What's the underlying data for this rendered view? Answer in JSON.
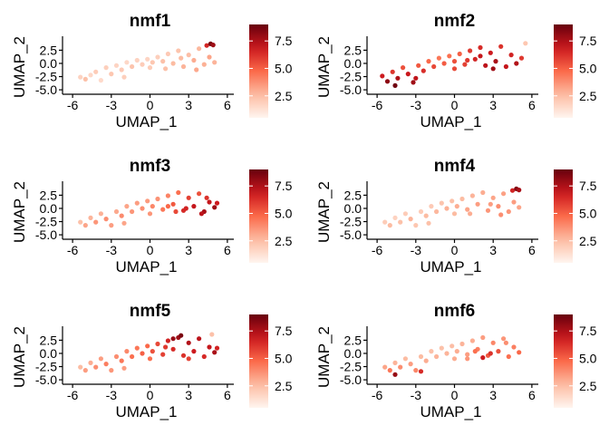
{
  "chart_data": [
    {
      "type": "scatter",
      "title": "nmf1",
      "xlabel": "UMAP_1",
      "ylabel": "UMAP_2",
      "xlim": [
        -6.5,
        6.5
      ],
      "ylim": [
        -5.5,
        4.8
      ],
      "xticks": [
        -6,
        -3,
        0,
        3,
        6
      ],
      "xtick_labels": [
        "-6",
        "-3",
        "0",
        "3",
        "6"
      ],
      "yticks": [
        -5,
        -2.5,
        0,
        2.5
      ],
      "ytick_labels": [
        "-5.0",
        "-2.5",
        "0.0",
        "2.5"
      ],
      "color_scale": {
        "low": "#fff5f0",
        "high": "#67000d",
        "range": [
          0.5,
          9
        ],
        "ticks": [
          2.5,
          5,
          7.5
        ],
        "tick_labels": [
          "2.5",
          "5.0",
          "7.5"
        ]
      },
      "points": [
        [
          -5.4,
          -2.6,
          1.8
        ],
        [
          -5.0,
          -3.0,
          2.4
        ],
        [
          -4.6,
          -2.2,
          1.6
        ],
        [
          -4.2,
          -1.6,
          2.0
        ],
        [
          -3.8,
          -3.2,
          1.5
        ],
        [
          -3.4,
          -0.8,
          1.9
        ],
        [
          -3.0,
          -2.0,
          2.2
        ],
        [
          -2.6,
          -0.4,
          1.7
        ],
        [
          -2.2,
          -1.2,
          2.1
        ],
        [
          -1.8,
          0.2,
          1.6
        ],
        [
          -1.4,
          -0.6,
          2.3
        ],
        [
          -1.0,
          0.6,
          1.8
        ],
        [
          -0.6,
          -0.2,
          2.0
        ],
        [
          -0.2,
          0.8,
          1.7
        ],
        [
          0.2,
          0.2,
          2.2
        ],
        [
          0.6,
          1.2,
          1.9
        ],
        [
          1.0,
          0.4,
          2.4
        ],
        [
          1.4,
          1.8,
          2.1
        ],
        [
          1.8,
          0.0,
          2.6
        ],
        [
          2.2,
          2.4,
          2.3
        ],
        [
          2.6,
          -0.6,
          2.8
        ],
        [
          3.0,
          1.6,
          2.5
        ],
        [
          3.4,
          0.6,
          3.0
        ],
        [
          3.8,
          2.8,
          2.7
        ],
        [
          4.2,
          -0.2,
          2.9
        ],
        [
          4.6,
          1.2,
          3.2
        ],
        [
          5.0,
          0.2,
          2.8
        ],
        [
          4.4,
          3.4,
          6.5
        ],
        [
          4.7,
          3.7,
          8.6
        ],
        [
          4.9,
          3.5,
          7.8
        ],
        [
          2.4,
          1.0,
          2.6
        ],
        [
          1.2,
          -1.0,
          2.4
        ],
        [
          3.6,
          -1.2,
          3.1
        ],
        [
          -2.0,
          -2.6,
          1.9
        ],
        [
          0.0,
          -0.8,
          2.0
        ]
      ]
    },
    {
      "type": "scatter",
      "title": "nmf2",
      "xlabel": "UMAP_1",
      "ylabel": "UMAP_2",
      "xlim": [
        -6.5,
        6.5
      ],
      "ylim": [
        -5.5,
        4.8
      ],
      "xticks": [
        -6,
        -3,
        0,
        3,
        6
      ],
      "xtick_labels": [
        "-6",
        "-3",
        "0",
        "3",
        "6"
      ],
      "yticks": [
        -5,
        -2.5,
        0,
        2.5
      ],
      "ytick_labels": [
        "-5.0",
        "-2.5",
        "0.0",
        "2.5"
      ],
      "color_scale": {
        "low": "#fff5f0",
        "high": "#67000d",
        "range": [
          0.5,
          9
        ],
        "ticks": [
          2.5,
          5,
          7.5
        ],
        "tick_labels": [
          "2.5",
          "5.0",
          "7.5"
        ]
      },
      "points": [
        [
          -5.6,
          -2.4,
          6.8
        ],
        [
          -5.2,
          -3.4,
          8.2
        ],
        [
          -4.8,
          -1.6,
          6.1
        ],
        [
          -4.4,
          -2.8,
          7.5
        ],
        [
          -4.0,
          -0.8,
          5.4
        ],
        [
          -3.6,
          -2.0,
          6.9
        ],
        [
          -3.2,
          -3.6,
          7.8
        ],
        [
          -2.8,
          -0.4,
          5.2
        ],
        [
          -2.4,
          -1.4,
          6.3
        ],
        [
          -2.0,
          0.4,
          4.8
        ],
        [
          -1.6,
          -0.6,
          5.6
        ],
        [
          -1.2,
          1.0,
          4.4
        ],
        [
          -0.8,
          0.0,
          5.1
        ],
        [
          -0.4,
          1.4,
          4.6
        ],
        [
          0.0,
          0.4,
          5.4
        ],
        [
          0.4,
          1.8,
          5.0
        ],
        [
          0.8,
          -0.2,
          5.8
        ],
        [
          1.2,
          2.4,
          6.0
        ],
        [
          1.6,
          0.8,
          6.6
        ],
        [
          2.0,
          3.0,
          6.4
        ],
        [
          2.4,
          -0.4,
          7.2
        ],
        [
          2.8,
          2.0,
          6.8
        ],
        [
          3.2,
          0.4,
          7.6
        ],
        [
          3.6,
          3.2,
          6.2
        ],
        [
          4.0,
          -0.6,
          7.0
        ],
        [
          4.4,
          1.6,
          6.6
        ],
        [
          4.8,
          0.0,
          7.4
        ],
        [
          5.2,
          1.0,
          6.0
        ],
        [
          2.0,
          1.4,
          7.0
        ],
        [
          3.0,
          -1.0,
          7.8
        ],
        [
          1.0,
          0.6,
          6.0
        ],
        [
          -4.6,
          -4.2,
          8.8
        ],
        [
          -3.0,
          -2.8,
          7.1
        ],
        [
          0.0,
          -1.0,
          5.6
        ],
        [
          5.5,
          3.8,
          2.2
        ]
      ]
    },
    {
      "type": "scatter",
      "title": "nmf3",
      "xlabel": "UMAP_1",
      "ylabel": "UMAP_2",
      "xlim": [
        -6.5,
        6.5
      ],
      "ylim": [
        -5.5,
        4.8
      ],
      "xticks": [
        -6,
        -3,
        0,
        3,
        6
      ],
      "xtick_labels": [
        "-6",
        "-3",
        "0",
        "3",
        "6"
      ],
      "yticks": [
        -5,
        -2.5,
        0,
        2.5
      ],
      "ytick_labels": [
        "-5.0",
        "-2.5",
        "0.0",
        "2.5"
      ],
      "color_scale": {
        "low": "#fff5f0",
        "high": "#67000d",
        "range": [
          0.5,
          9
        ],
        "ticks": [
          2.5,
          5,
          7.5
        ],
        "tick_labels": [
          "2.5",
          "5.0",
          "7.5"
        ]
      },
      "points": [
        [
          -5.4,
          -2.6,
          2.4
        ],
        [
          -5.0,
          -3.2,
          3.2
        ],
        [
          -4.6,
          -1.8,
          2.8
        ],
        [
          -4.2,
          -2.6,
          3.6
        ],
        [
          -3.8,
          -1.0,
          2.9
        ],
        [
          -3.4,
          -2.0,
          3.8
        ],
        [
          -3.0,
          -3.2,
          3.4
        ],
        [
          -2.6,
          -0.6,
          3.1
        ],
        [
          -2.2,
          -1.4,
          3.9
        ],
        [
          -1.8,
          0.4,
          3.2
        ],
        [
          -1.4,
          -0.6,
          3.6
        ],
        [
          -1.0,
          1.0,
          3.4
        ],
        [
          -0.6,
          0.0,
          3.8
        ],
        [
          -0.2,
          1.4,
          3.5
        ],
        [
          0.2,
          0.4,
          4.0
        ],
        [
          0.6,
          1.8,
          3.7
        ],
        [
          1.0,
          -0.2,
          4.4
        ],
        [
          1.4,
          2.4,
          4.1
        ],
        [
          1.8,
          0.8,
          5.2
        ],
        [
          2.2,
          3.0,
          4.6
        ],
        [
          2.6,
          -0.4,
          6.4
        ],
        [
          3.0,
          2.0,
          5.8
        ],
        [
          3.4,
          0.4,
          7.0
        ],
        [
          3.8,
          2.8,
          5.4
        ],
        [
          4.2,
          -0.6,
          7.6
        ],
        [
          4.6,
          1.2,
          7.0
        ],
        [
          5.0,
          0.2,
          7.8
        ],
        [
          5.2,
          1.0,
          6.8
        ],
        [
          2.8,
          0.0,
          6.6
        ],
        [
          4.0,
          -1.0,
          7.2
        ],
        [
          2.0,
          -0.6,
          5.6
        ],
        [
          -2.0,
          -2.8,
          3.2
        ],
        [
          0.0,
          -1.0,
          3.6
        ],
        [
          4.4,
          2.0,
          6.2
        ],
        [
          1.4,
          0.4,
          4.8
        ]
      ]
    },
    {
      "type": "scatter",
      "title": "nmf4",
      "xlabel": "UMAP_1",
      "ylabel": "UMAP_2",
      "xlim": [
        -6.5,
        6.5
      ],
      "ylim": [
        -5.5,
        4.8
      ],
      "xticks": [
        -6,
        -3,
        0,
        3,
        6
      ],
      "xtick_labels": [
        "-6",
        "-3",
        "0",
        "3",
        "6"
      ],
      "yticks": [
        -5,
        -2.5,
        0,
        2.5
      ],
      "ytick_labels": [
        "-5.0",
        "-2.5",
        "0.0",
        "2.5"
      ],
      "color_scale": {
        "low": "#fff5f0",
        "high": "#67000d",
        "range": [
          0.5,
          9
        ],
        "ticks": [
          2.5,
          5,
          7.5
        ],
        "tick_labels": [
          "2.5",
          "5.0",
          "7.5"
        ]
      },
      "points": [
        [
          -5.4,
          -2.6,
          2.0
        ],
        [
          -5.0,
          -3.2,
          2.6
        ],
        [
          -4.6,
          -1.8,
          1.8
        ],
        [
          -4.2,
          -2.6,
          2.4
        ],
        [
          -3.8,
          -1.0,
          2.0
        ],
        [
          -3.4,
          -2.0,
          2.8
        ],
        [
          -3.0,
          -3.2,
          2.2
        ],
        [
          -2.6,
          -0.6,
          2.0
        ],
        [
          -2.2,
          -1.4,
          2.6
        ],
        [
          -1.8,
          0.4,
          2.1
        ],
        [
          -1.4,
          -0.6,
          2.7
        ],
        [
          -1.0,
          1.0,
          2.3
        ],
        [
          -0.6,
          0.0,
          2.9
        ],
        [
          -0.2,
          1.4,
          2.4
        ],
        [
          0.2,
          0.4,
          3.0
        ],
        [
          0.6,
          1.8,
          2.6
        ],
        [
          1.0,
          -0.2,
          3.2
        ],
        [
          1.4,
          2.4,
          2.8
        ],
        [
          1.8,
          0.8,
          3.4
        ],
        [
          2.2,
          3.0,
          3.0
        ],
        [
          2.6,
          -0.4,
          3.6
        ],
        [
          3.0,
          2.0,
          3.2
        ],
        [
          3.4,
          0.4,
          3.8
        ],
        [
          3.8,
          2.8,
          3.3
        ],
        [
          4.2,
          -0.6,
          3.6
        ],
        [
          4.6,
          1.2,
          3.4
        ],
        [
          5.0,
          0.2,
          3.2
        ],
        [
          4.5,
          3.4,
          6.6
        ],
        [
          4.8,
          3.7,
          8.4
        ],
        [
          5.0,
          3.5,
          7.6
        ],
        [
          2.8,
          0.8,
          3.4
        ],
        [
          1.2,
          -1.0,
          3.0
        ],
        [
          -2.0,
          -2.8,
          2.4
        ],
        [
          0.0,
          -1.0,
          2.6
        ],
        [
          3.6,
          -1.2,
          3.8
        ]
      ]
    },
    {
      "type": "scatter",
      "title": "nmf5",
      "xlabel": "UMAP_1",
      "ylabel": "UMAP_2",
      "xlim": [
        -6.5,
        6.5
      ],
      "ylim": [
        -5.5,
        4.8
      ],
      "xticks": [
        -6,
        -3,
        0,
        3,
        6
      ],
      "xtick_labels": [
        "-6",
        "-3",
        "0",
        "3",
        "6"
      ],
      "yticks": [
        -5,
        -2.5,
        0,
        2.5
      ],
      "ytick_labels": [
        "-5.0",
        "-2.5",
        "0.0",
        "2.5"
      ],
      "color_scale": {
        "low": "#fff5f0",
        "high": "#67000d",
        "range": [
          0.5,
          9
        ],
        "ticks": [
          2.5,
          5,
          7.5
        ],
        "tick_labels": [
          "2.5",
          "5.0",
          "7.5"
        ]
      },
      "points": [
        [
          -5.4,
          -2.6,
          2.6
        ],
        [
          -5.0,
          -3.2,
          3.4
        ],
        [
          -4.6,
          -1.8,
          3.0
        ],
        [
          -4.2,
          -2.6,
          3.8
        ],
        [
          -3.8,
          -1.0,
          3.4
        ],
        [
          -3.4,
          -2.0,
          4.2
        ],
        [
          -3.0,
          -3.2,
          3.6
        ],
        [
          -2.6,
          -0.6,
          3.8
        ],
        [
          -2.2,
          -1.4,
          4.4
        ],
        [
          -1.8,
          0.4,
          4.0
        ],
        [
          -1.4,
          -0.6,
          4.6
        ],
        [
          -1.0,
          1.0,
          4.4
        ],
        [
          -0.6,
          0.0,
          5.0
        ],
        [
          -0.2,
          1.4,
          4.8
        ],
        [
          0.2,
          0.4,
          5.4
        ],
        [
          0.6,
          1.8,
          5.6
        ],
        [
          1.0,
          -0.2,
          5.8
        ],
        [
          1.4,
          2.4,
          6.6
        ],
        [
          1.8,
          0.8,
          6.4
        ],
        [
          2.2,
          3.0,
          7.8
        ],
        [
          2.6,
          -0.4,
          6.2
        ],
        [
          3.0,
          2.0,
          7.4
        ],
        [
          3.4,
          0.4,
          6.8
        ],
        [
          3.8,
          2.8,
          7.2
        ],
        [
          4.2,
          -0.6,
          6.4
        ],
        [
          4.6,
          1.2,
          7.0
        ],
        [
          5.0,
          0.2,
          7.6
        ],
        [
          5.2,
          1.0,
          6.6
        ],
        [
          2.4,
          3.4,
          8.6
        ],
        [
          1.8,
          2.8,
          8.0
        ],
        [
          3.0,
          -1.0,
          5.8
        ],
        [
          -2.0,
          -2.8,
          3.4
        ],
        [
          0.0,
          -1.0,
          4.6
        ],
        [
          4.8,
          3.6,
          2.4
        ],
        [
          1.2,
          1.2,
          6.0
        ]
      ]
    },
    {
      "type": "scatter",
      "title": "nmf6",
      "xlabel": "UMAP_1",
      "ylabel": "UMAP_2",
      "xlim": [
        -6.5,
        6.5
      ],
      "ylim": [
        -5.5,
        4.8
      ],
      "xticks": [
        -6,
        -3,
        0,
        3,
        6
      ],
      "xtick_labels": [
        "-6",
        "-3",
        "0",
        "3",
        "6"
      ],
      "yticks": [
        -5,
        -2.5,
        0,
        2.5
      ],
      "ytick_labels": [
        "-5.0",
        "-2.5",
        "0.0",
        "2.5"
      ],
      "color_scale": {
        "low": "#fff5f0",
        "high": "#67000d",
        "range": [
          0.5,
          9
        ],
        "ticks": [
          2.5,
          5,
          7.5
        ],
        "tick_labels": [
          "2.5",
          "5.0",
          "7.5"
        ]
      },
      "points": [
        [
          -5.4,
          -2.6,
          3.2
        ],
        [
          -5.0,
          -3.2,
          4.4
        ],
        [
          -4.6,
          -1.8,
          2.8
        ],
        [
          -4.2,
          -2.6,
          3.8
        ],
        [
          -3.8,
          -1.0,
          2.6
        ],
        [
          -3.4,
          -2.0,
          3.4
        ],
        [
          -3.0,
          -3.2,
          4.0
        ],
        [
          -2.6,
          -0.6,
          2.6
        ],
        [
          -2.2,
          -1.4,
          3.0
        ],
        [
          -1.8,
          0.4,
          2.4
        ],
        [
          -1.4,
          -0.6,
          2.8
        ],
        [
          -1.0,
          1.0,
          2.4
        ],
        [
          -0.6,
          0.0,
          2.8
        ],
        [
          -0.2,
          1.4,
          2.5
        ],
        [
          0.2,
          0.4,
          3.0
        ],
        [
          0.6,
          1.8,
          2.8
        ],
        [
          1.0,
          -0.2,
          3.4
        ],
        [
          1.4,
          2.4,
          3.0
        ],
        [
          1.8,
          0.8,
          4.2
        ],
        [
          2.2,
          3.0,
          3.4
        ],
        [
          2.6,
          -0.4,
          5.2
        ],
        [
          3.0,
          2.0,
          4.0
        ],
        [
          3.4,
          0.4,
          5.4
        ],
        [
          3.8,
          2.8,
          3.6
        ],
        [
          4.2,
          -0.6,
          4.6
        ],
        [
          4.6,
          1.2,
          4.2
        ],
        [
          5.0,
          0.2,
          4.8
        ],
        [
          2.2,
          -0.8,
          6.8
        ],
        [
          2.8,
          0.0,
          6.2
        ],
        [
          -4.6,
          -4.0,
          8.0
        ],
        [
          -2.6,
          -3.4,
          6.4
        ],
        [
          1.0,
          -1.0,
          3.6
        ],
        [
          0.0,
          -1.0,
          3.0
        ],
        [
          4.0,
          2.0,
          3.8
        ],
        [
          1.6,
          0.4,
          4.6
        ]
      ]
    }
  ]
}
